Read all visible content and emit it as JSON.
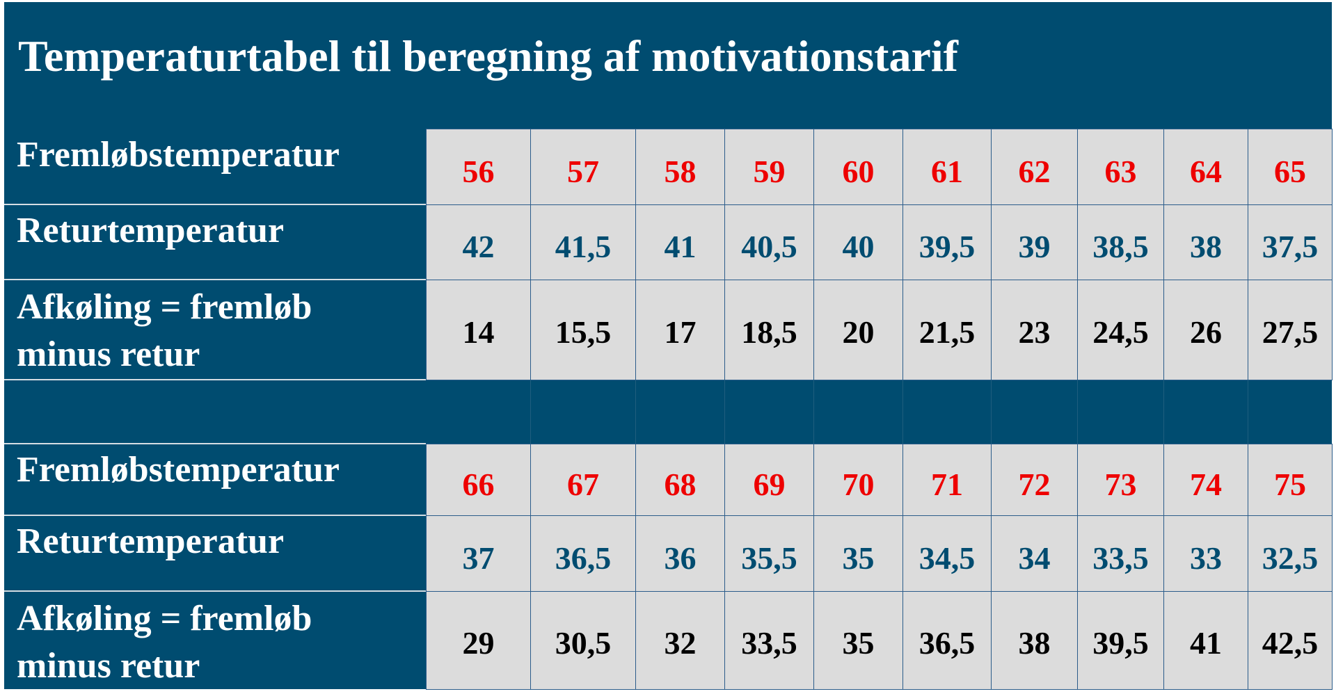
{
  "title": "Temperaturtabel til beregning af motivationstarif",
  "colors": {
    "band": "#004c70",
    "cell_bg": "#dcdcdc",
    "flow_value": "#ee0000",
    "return_value": "#004c70",
    "cooling_value": "#000000"
  },
  "blocks": [
    {
      "rows": [
        {
          "kind": "flow",
          "label_lines": [
            "Fremløbstemperatur"
          ],
          "values": [
            "56",
            "57",
            "58",
            "59",
            "60",
            "61",
            "62",
            "63",
            "64",
            "65"
          ]
        },
        {
          "kind": "ret",
          "label_lines": [
            "Returtemperatur"
          ],
          "values": [
            "42",
            "41,5",
            "41",
            "40,5",
            "40",
            "39,5",
            "39",
            "38,5",
            "38",
            "37,5"
          ]
        },
        {
          "kind": "cool",
          "label_lines": [
            "Afkøling = fremløb",
            "minus retur"
          ],
          "values": [
            "14",
            "15,5",
            "17",
            "18,5",
            "20",
            "21,5",
            "23",
            "24,5",
            "26",
            "27,5"
          ]
        }
      ]
    },
    {
      "rows": [
        {
          "kind": "flow",
          "label_lines": [
            "Fremløbstemperatur"
          ],
          "values": [
            "66",
            "67",
            "68",
            "69",
            "70",
            "71",
            "72",
            "73",
            "74",
            "75"
          ]
        },
        {
          "kind": "ret",
          "label_lines": [
            "Returtemperatur"
          ],
          "values": [
            "37",
            "36,5",
            "36",
            "35,5",
            "35",
            "34,5",
            "34",
            "33,5",
            "33",
            "32,5"
          ]
        },
        {
          "kind": "cool",
          "label_lines": [
            "Afkøling = fremløb",
            "minus retur"
          ],
          "values": [
            "29",
            "30,5",
            "32",
            "33,5",
            "35",
            "36,5",
            "38",
            "39,5",
            "41",
            "42,5"
          ]
        }
      ]
    }
  ]
}
